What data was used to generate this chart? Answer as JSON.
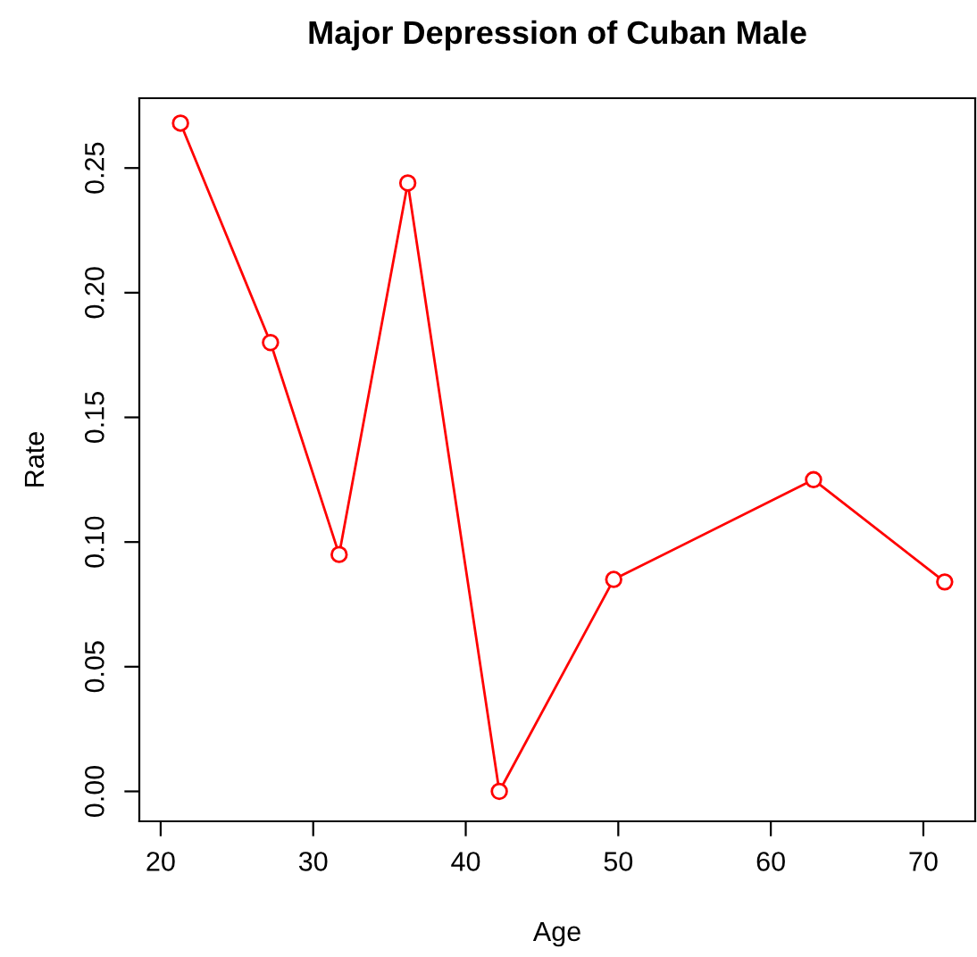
{
  "chart_data": {
    "type": "line",
    "title": "Major Depression of Cuban Male",
    "xlabel": "Age",
    "ylabel": "Rate",
    "x": [
      21.3,
      27.2,
      31.7,
      36.2,
      42.2,
      49.7,
      62.8,
      71.4
    ],
    "series": [
      {
        "color": "#ff0000",
        "values": [
          0.268,
          0.18,
          0.095,
          0.244,
          0.0,
          0.085,
          0.125,
          0.084
        ]
      }
    ],
    "xlim": [
      18.6,
      73.4
    ],
    "ylim": [
      -0.012,
      0.278
    ],
    "xticks": [
      20,
      30,
      40,
      50,
      60,
      70
    ],
    "yticks": [
      {
        "value": 0,
        "label": "0.00"
      },
      {
        "value": 0.05,
        "label": "0.05"
      },
      {
        "value": 0.1,
        "label": "0.10"
      },
      {
        "value": 0.15,
        "label": "0.15"
      },
      {
        "value": 0.2,
        "label": "0.20"
      },
      {
        "value": 0.25,
        "label": "0.25"
      }
    ],
    "marker": "circle",
    "line_style": "solid",
    "grid": false,
    "legend": false
  }
}
